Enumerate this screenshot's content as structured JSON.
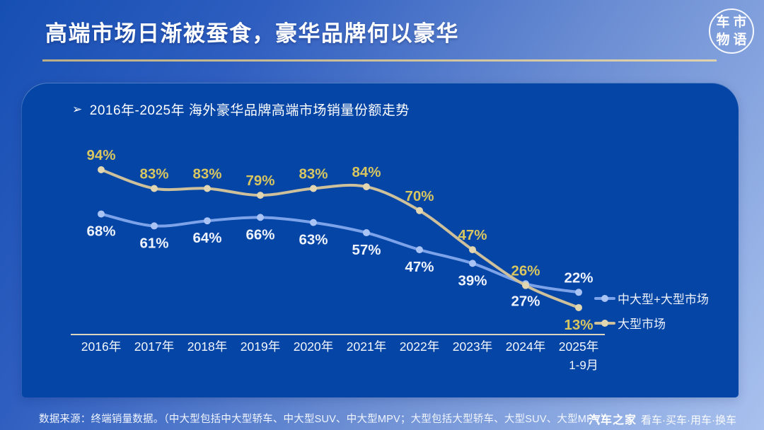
{
  "slide": {
    "title": "高端市场日渐被蚕食，豪华品牌何以豪华",
    "logo": {
      "chars": [
        "车",
        "市",
        "物",
        "语"
      ]
    },
    "footer": {
      "source": "数据来源：终端销量数据。（中大型包括中大型轿车、中大型SUV、中大型MPV；大型包括大型轿车、大型SUV、大型MPV）",
      "brand": "汽车之家",
      "brand_tagline": "看车·买车·用车·换车"
    }
  },
  "chart_data": {
    "type": "line",
    "title": "2016年-2025年 海外豪华品牌高端市场销量份额走势",
    "title_bullet": "➢",
    "categories": [
      "2016年",
      "2017年",
      "2018年",
      "2019年",
      "2020年",
      "2021年",
      "2022年",
      "2023年",
      "2024年",
      "2025年"
    ],
    "last_category_note": "1-9月",
    "unit": "%",
    "ylim": [
      0,
      100
    ],
    "grid": false,
    "legend_position": "right",
    "axis_color": "#ddd6bf",
    "tick_label_color": "#f4f7fd",
    "series": [
      {
        "name": "中大型+大型市场",
        "color": "#7ca3e9",
        "dot_color": "#a9c4f4",
        "label_color": "#eef3fd",
        "values": [
          68,
          61,
          64,
          66,
          63,
          57,
          47,
          39,
          27,
          22
        ],
        "label_sides": [
          "below",
          "below",
          "below",
          "below",
          "below",
          "below",
          "below",
          "below",
          "below",
          "above"
        ]
      },
      {
        "name": "大型市场",
        "color": "#cdc09a",
        "dot_color": "#e2d6b1",
        "label_color": "#d8c660",
        "values": [
          94,
          83,
          83,
          79,
          83,
          84,
          70,
          47,
          26,
          13
        ],
        "label_sides": [
          "above",
          "above",
          "above",
          "above",
          "above",
          "above",
          "above",
          "above",
          "above",
          "below"
        ]
      }
    ]
  }
}
